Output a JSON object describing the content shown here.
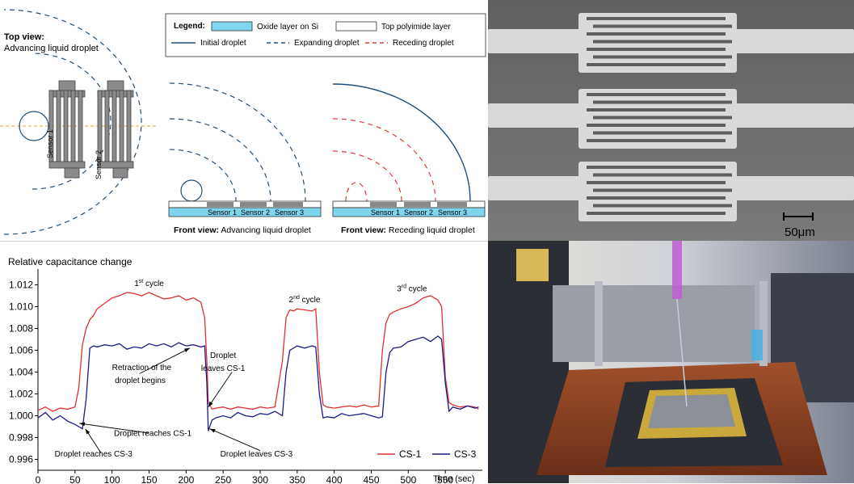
{
  "schematic": {
    "top_view_title": "Top view:",
    "top_view_subtitle": "Advancing liquid droplet",
    "sensor1": "Sensor 1",
    "sensor2": "Sensor 2",
    "legend": {
      "title": "Legend:",
      "oxide": "Oxide layer on Si",
      "polyimide": "Top polyimide layer",
      "initial": "Initial droplet",
      "expanding": "Expanding droplet",
      "receding": "Receding droplet",
      "colors": {
        "oxide": "#7fd4ee",
        "blue": "#1f4e79",
        "red": "#e03a3a"
      }
    },
    "front_adv": {
      "bold": "Front view:",
      "rest": " Advancing liquid droplet",
      "labels": [
        "Sensor 1",
        "Sensor 2",
        "Sensor 3"
      ]
    },
    "front_rec": {
      "bold": "Front view:",
      "rest": " Receding liquid droplet",
      "labels": [
        "Sensor 1",
        "Sensor 2",
        "Sensor 3"
      ]
    }
  },
  "micrograph": {
    "scale_label": "50μm"
  },
  "chart_data": {
    "type": "line",
    "title": "Relative capacitance change",
    "xlabel": "Time (sec)",
    "ylabel": "",
    "xlim": [
      0,
      600
    ],
    "ylim": [
      0.995,
      1.013
    ],
    "xticks": [
      0,
      50,
      100,
      150,
      200,
      250,
      300,
      350,
      400,
      450,
      500,
      550
    ],
    "yticks": [
      0.996,
      0.998,
      1.0,
      1.002,
      1.004,
      1.006,
      1.008,
      1.01,
      1.012
    ],
    "grid": false,
    "legend_position": "bottom-right",
    "series": [
      {
        "name": "CS-1",
        "color": "#e03030",
        "x": [
          0,
          10,
          20,
          30,
          40,
          50,
          55,
          60,
          65,
          70,
          75,
          80,
          90,
          100,
          110,
          120,
          130,
          140,
          150,
          160,
          170,
          180,
          190,
          200,
          210,
          220,
          225,
          228,
          230,
          235,
          240,
          250,
          260,
          270,
          280,
          290,
          300,
          310,
          320,
          330,
          335,
          340,
          345,
          350,
          360,
          370,
          375,
          380,
          385,
          390,
          400,
          410,
          420,
          430,
          440,
          450,
          460,
          465,
          470,
          475,
          480,
          490,
          500,
          510,
          520,
          530,
          540,
          545,
          550,
          555,
          560,
          570,
          580,
          590,
          595
        ],
        "y": [
          1.0005,
          1.0008,
          1.0004,
          1.0007,
          1.0006,
          1.0008,
          1.0025,
          1.0065,
          1.008,
          1.0088,
          1.0092,
          1.0098,
          1.0103,
          1.0108,
          1.011,
          1.0113,
          1.0112,
          1.011,
          1.0113,
          1.011,
          1.0107,
          1.0108,
          1.011,
          1.0106,
          1.0108,
          1.0104,
          1.009,
          1.005,
          1.0012,
          1.0006,
          1.0007,
          1.0008,
          1.0006,
          1.0008,
          1.0007,
          1.0006,
          1.0008,
          1.0007,
          1.0008,
          1.005,
          1.009,
          1.0097,
          1.0096,
          1.0098,
          1.0097,
          1.0096,
          1.0098,
          1.004,
          1.001,
          1.0008,
          1.0007,
          1.0008,
          1.0009,
          1.0008,
          1.001,
          1.0008,
          1.0009,
          1.006,
          1.0085,
          1.0093,
          1.0095,
          1.0098,
          1.01,
          1.0103,
          1.0108,
          1.011,
          1.0106,
          1.01,
          1.0035,
          1.0012,
          1.001,
          1.0008,
          1.0009,
          1.0008,
          1.0006
        ]
      },
      {
        "name": "CS-3",
        "color": "#1a1a8a",
        "x": [
          0,
          10,
          20,
          30,
          40,
          50,
          55,
          60,
          65,
          70,
          75,
          80,
          90,
          100,
          110,
          120,
          130,
          140,
          150,
          160,
          170,
          180,
          190,
          200,
          210,
          220,
          225,
          228,
          230,
          235,
          240,
          250,
          260,
          270,
          280,
          290,
          300,
          310,
          320,
          330,
          335,
          340,
          345,
          350,
          360,
          370,
          375,
          380,
          385,
          390,
          400,
          410,
          420,
          430,
          440,
          450,
          460,
          465,
          470,
          475,
          480,
          490,
          500,
          510,
          520,
          530,
          540,
          545,
          550,
          555,
          560,
          570,
          580,
          590,
          595
        ],
        "y": [
          0.9998,
          1.0003,
          0.9996,
          1.0,
          0.9995,
          0.9992,
          0.999,
          0.9988,
          1.0015,
          1.0062,
          1.0064,
          1.0063,
          1.0065,
          1.0064,
          1.0066,
          1.0061,
          1.0063,
          1.0062,
          1.0066,
          1.0064,
          1.0066,
          1.0063,
          1.0067,
          1.0064,
          1.0065,
          1.0063,
          1.0064,
          1.003,
          0.9986,
          0.9996,
          0.9998,
          1.0,
          0.9998,
          1.0003,
          1.0,
          0.9999,
          1.0002,
          1.0001,
          1.0004,
          1.0,
          1.004,
          1.006,
          1.0062,
          1.0064,
          1.0062,
          1.0064,
          1.0063,
          1.002,
          0.9998,
          0.9999,
          0.9998,
          1.0002,
          1.0,
          1.0001,
          1.0002,
          1.0,
          0.9998,
          0.9999,
          1.004,
          1.0058,
          1.0062,
          1.0063,
          1.0068,
          1.007,
          1.0072,
          1.0068,
          1.0073,
          1.007,
          1.003,
          1.0004,
          1.0008,
          1.0006,
          1.0009,
          1.0007,
          1.0008
        ]
      }
    ],
    "annotations": [
      {
        "text": "1st cycle",
        "sup": "st",
        "base": "1",
        "rest": " cycle",
        "x": 150,
        "y": 1.0119
      },
      {
        "text": "2nd cycle",
        "sup": "nd",
        "base": "2",
        "rest": " cycle",
        "x": 360,
        "y": 1.0104
      },
      {
        "text": "3rd cycle",
        "sup": "rd",
        "base": "3",
        "rest": " cycle",
        "x": 505,
        "y": 1.0114
      },
      {
        "text": "Retraction of the",
        "x": 140,
        "y": 1.0042
      },
      {
        "text": "droplet begins",
        "x": 138,
        "y": 1.003
      },
      {
        "text": "Droplet",
        "x": 250,
        "y": 1.0053
      },
      {
        "text": "leaves CS-1",
        "x": 250,
        "y": 1.0041
      },
      {
        "text": "Droplet reaches CS-1",
        "x": 155,
        "y": 0.99815
      },
      {
        "text": "Droplet reaches CS-3",
        "x": 75,
        "y": 0.99625
      },
      {
        "text": "Droplet leaves CS-3",
        "x": 295,
        "y": 0.99625
      }
    ]
  }
}
